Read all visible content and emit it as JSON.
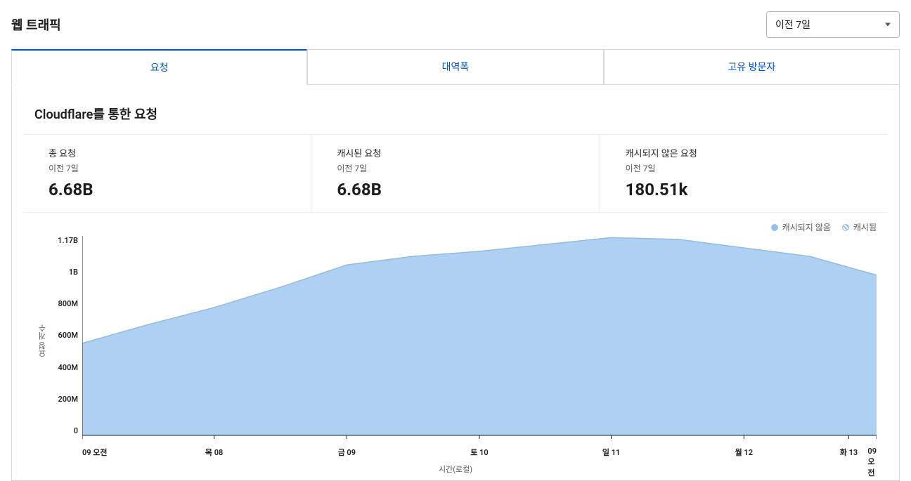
{
  "header": {
    "title": "웹 트래픽",
    "range_selector": {
      "selected": "이전 7일"
    }
  },
  "tabs": {
    "items": [
      {
        "label": "요청",
        "active": true
      },
      {
        "label": "대역폭",
        "active": false
      },
      {
        "label": "고유 방문자",
        "active": false
      }
    ]
  },
  "section": {
    "title": "Cloudflare를 통한 요청"
  },
  "stats": [
    {
      "label": "총 요청",
      "sub": "이전 7일",
      "value": "6.68B"
    },
    {
      "label": "캐시된 요청",
      "sub": "이전 7일",
      "value": "6.68B"
    },
    {
      "label": "캐시되지 않은 요청",
      "sub": "이전 7일",
      "value": "180.51k"
    }
  ],
  "chart": {
    "type": "area",
    "legend": [
      {
        "label": "캐시되지 않음",
        "color": "#92c1f0",
        "pattern": "solid"
      },
      {
        "label": "캐시됨",
        "color": "#92c1f0",
        "pattern": "hatched"
      }
    ],
    "ylabel": "요청 개수",
    "yticks": [
      "1.17B",
      "1B",
      "800M",
      "600M",
      "400M",
      "200M",
      "0"
    ],
    "ylim_max": 1170000000,
    "ylim_min": 0,
    "xlabel": "시간(로컬)",
    "xticks": [
      {
        "label": "09 오전",
        "pos": 0.0
      },
      {
        "label": "목 08",
        "pos": 0.166
      },
      {
        "label": "금 09",
        "pos": 0.333
      },
      {
        "label": "토 10",
        "pos": 0.5
      },
      {
        "label": "일 11",
        "pos": 0.666
      },
      {
        "label": "월 12",
        "pos": 0.833
      },
      {
        "label": "화 13",
        "pos": 0.965
      },
      {
        "label": "09 오전",
        "pos": 1.0
      }
    ],
    "series_cached": {
      "color_fill": "#aed0f2",
      "color_stroke": "#8ebce8",
      "points": [
        {
          "x": 0.0,
          "y": 540000000
        },
        {
          "x": 0.083,
          "y": 650000000
        },
        {
          "x": 0.166,
          "y": 750000000
        },
        {
          "x": 0.25,
          "y": 870000000
        },
        {
          "x": 0.333,
          "y": 1000000000
        },
        {
          "x": 0.416,
          "y": 1050000000
        },
        {
          "x": 0.5,
          "y": 1080000000
        },
        {
          "x": 0.583,
          "y": 1120000000
        },
        {
          "x": 0.666,
          "y": 1160000000
        },
        {
          "x": 0.75,
          "y": 1150000000
        },
        {
          "x": 0.833,
          "y": 1100000000
        },
        {
          "x": 0.916,
          "y": 1050000000
        },
        {
          "x": 1.0,
          "y": 940000000
        }
      ]
    },
    "background_color": "#ffffff",
    "axis_color": "#1d1d1d",
    "tick_fontsize": 11,
    "label_fontsize": 11
  }
}
